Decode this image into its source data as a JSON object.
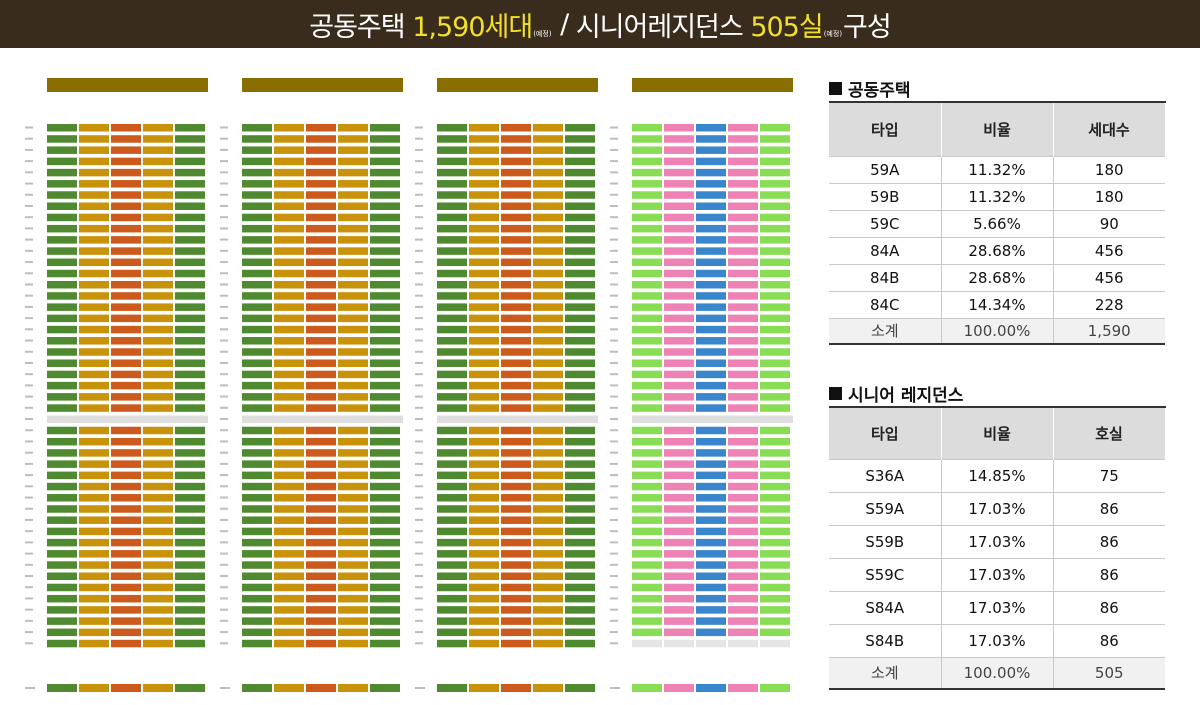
{
  "title": {
    "part1": "공동주택",
    "count1": "1,590세대",
    "note1": "(예정)",
    "sep": "/",
    "part2": "시니어레지던스",
    "count2": "505실",
    "note2": "(예정)",
    "part3": "구성"
  },
  "colors": {
    "59A": "#4f8a30",
    "59B": "#c8920a",
    "59C": "#cc5a1c",
    "84": "#c8920a",
    "S36A": "#88dd55",
    "S59A": "#ee82b4",
    "S59B": "#3a86cc",
    "title_bg": "#3a2c1c",
    "accent": "#f2df2a"
  },
  "apartment": {
    "heading": "공동주택",
    "columns": [
      "타입",
      "비율",
      "세대수"
    ],
    "rows": [
      [
        "59A",
        "11.32%",
        "180"
      ],
      [
        "59B",
        "11.32%",
        "180"
      ],
      [
        "59C",
        "5.66%",
        "90"
      ],
      [
        "84A",
        "28.68%",
        "456"
      ],
      [
        "84B",
        "28.68%",
        "456"
      ],
      [
        "84C",
        "14.34%",
        "228"
      ]
    ],
    "subtotal": [
      "소계",
      "100.00%",
      "1,590"
    ]
  },
  "senior": {
    "heading": "시니어 레지던스",
    "columns": [
      "타입",
      "비율",
      "호실"
    ],
    "rows": [
      [
        "S36A",
        "14.85%",
        "75"
      ],
      [
        "S59A",
        "17.03%",
        "86"
      ],
      [
        "S59B",
        "17.03%",
        "86"
      ],
      [
        "S59C",
        "17.03%",
        "86"
      ],
      [
        "S84A",
        "17.03%",
        "86"
      ],
      [
        "S84B",
        "17.03%",
        "86"
      ]
    ],
    "subtotal": [
      "소계",
      "100.00%",
      "505"
    ]
  }
}
